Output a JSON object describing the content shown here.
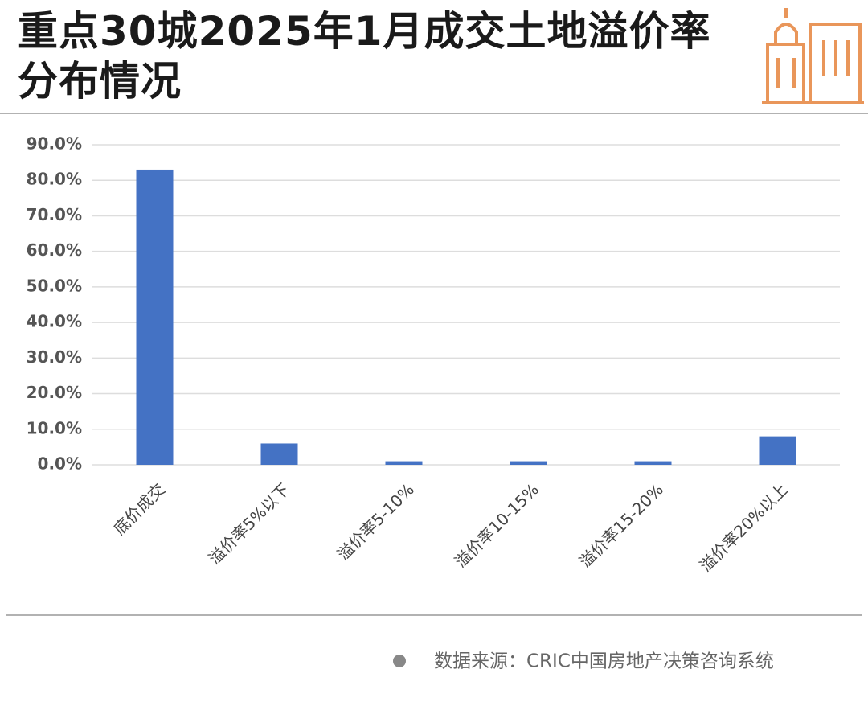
{
  "chart_data": {
    "type": "bar",
    "title": "重点30城2025年1月成交土地溢价率分布情况",
    "categories": [
      "底价成交",
      "溢价率5%以下",
      "溢价率5-10%",
      "溢价率10-15%",
      "溢价率15-20%",
      "溢价率20%以上"
    ],
    "values": [
      83,
      6,
      1,
      1,
      1,
      8
    ],
    "color": "#4472c4",
    "ylim": [
      0,
      90
    ],
    "yticks": [
      {
        "value": 0,
        "label": "0.0%"
      },
      {
        "value": 10,
        "label": "10.0%"
      },
      {
        "value": 20,
        "label": "20.0%"
      },
      {
        "value": 30,
        "label": "30.0%"
      },
      {
        "value": 40,
        "label": "40.0%"
      },
      {
        "value": 50,
        "label": "50.0%"
      },
      {
        "value": 60,
        "label": "60.0%"
      },
      {
        "value": 70,
        "label": "70.0%"
      },
      {
        "value": 80,
        "label": "80.0%"
      },
      {
        "value": 90,
        "label": "90.0%"
      }
    ],
    "grid": true,
    "source": "数据来源：CRIC中国房地产决策咨询系统"
  }
}
